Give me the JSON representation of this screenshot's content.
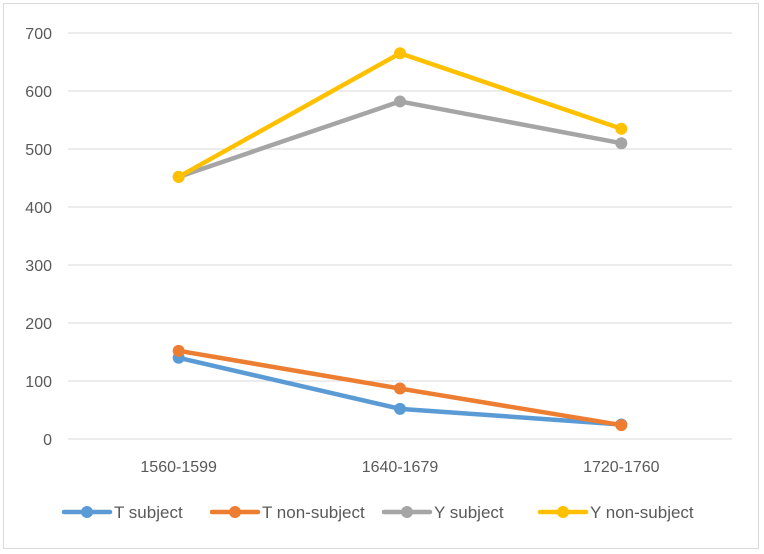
{
  "chart_data": {
    "type": "line",
    "title": "",
    "xlabel": "",
    "ylabel": "",
    "categories": [
      "1560-1599",
      "1640-1679",
      "1720-1760"
    ],
    "ylim": [
      0,
      700
    ],
    "yticks": [
      0,
      100,
      200,
      300,
      400,
      500,
      600,
      700
    ],
    "grid": true,
    "legend_position": "bottom",
    "series": [
      {
        "name": "T subject",
        "values": [
          140,
          52,
          25
        ],
        "color": "#5B9BD5"
      },
      {
        "name": "T non-subject",
        "values": [
          152,
          87,
          24
        ],
        "color": "#ED7D31"
      },
      {
        "name": "Y subject",
        "values": [
          452,
          582,
          510
        ],
        "color": "#A5A5A5"
      },
      {
        "name": "Y non-subject",
        "values": [
          452,
          665,
          535
        ],
        "color": "#FFC000"
      }
    ]
  }
}
